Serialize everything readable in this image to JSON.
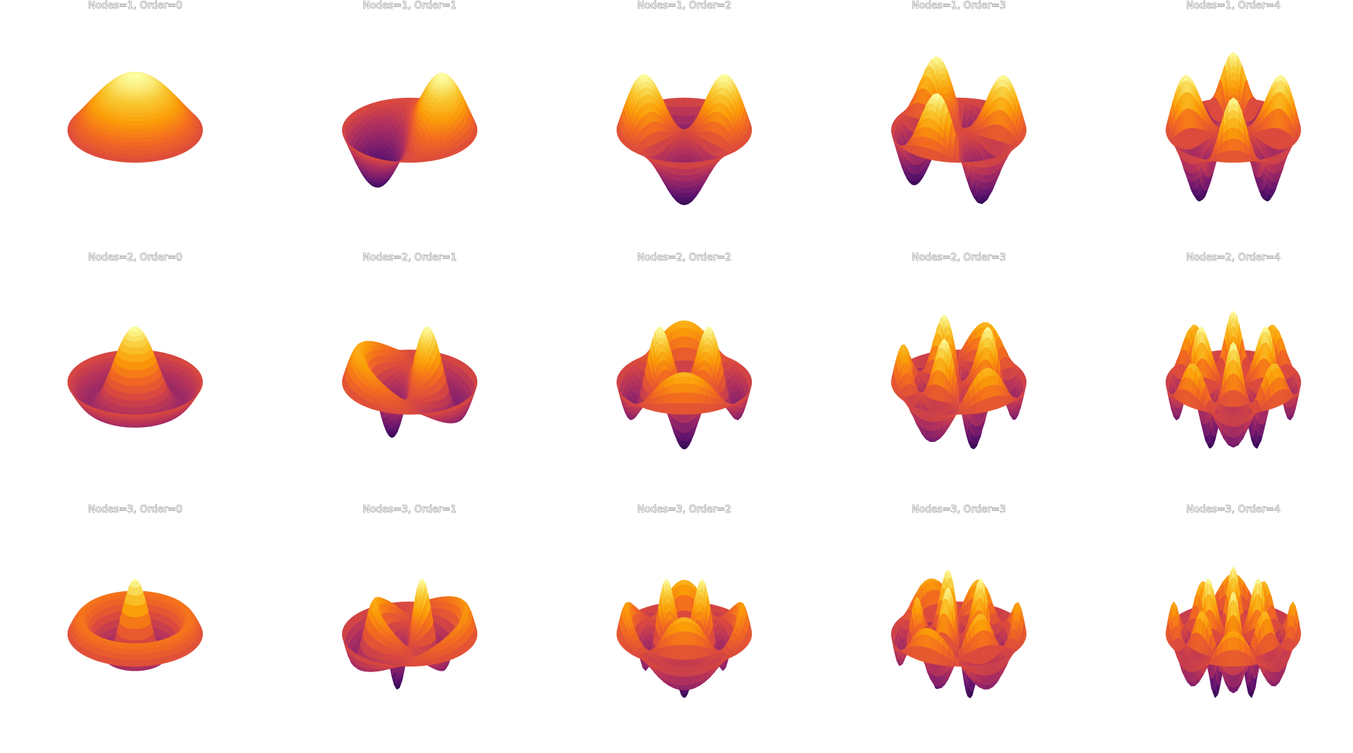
{
  "chart_data": {
    "type": "surface-grid",
    "description_title": "",
    "colormap": "inferno",
    "colors": [
      "#2a0a4c",
      "#5c126e",
      "#8a226a",
      "#b5325b",
      "#dc4a3c",
      "#f36b1f",
      "#fb9d07",
      "#f8c932",
      "#fcffa4"
    ],
    "layout": {
      "rows": 3,
      "cols": 5
    },
    "panels": [
      {
        "title": "Nodes=1, Order=0",
        "nodes": 1,
        "order": 0
      },
      {
        "title": "Nodes=1, Order=1",
        "nodes": 1,
        "order": 1
      },
      {
        "title": "Nodes=1, Order=2",
        "nodes": 1,
        "order": 2
      },
      {
        "title": "Nodes=1, Order=3",
        "nodes": 1,
        "order": 3
      },
      {
        "title": "Nodes=1, Order=4",
        "nodes": 1,
        "order": 4
      },
      {
        "title": "Nodes=2, Order=0",
        "nodes": 2,
        "order": 0
      },
      {
        "title": "Nodes=2, Order=1",
        "nodes": 2,
        "order": 1
      },
      {
        "title": "Nodes=2, Order=2",
        "nodes": 2,
        "order": 2
      },
      {
        "title": "Nodes=2, Order=3",
        "nodes": 2,
        "order": 3
      },
      {
        "title": "Nodes=2, Order=4",
        "nodes": 2,
        "order": 4
      },
      {
        "title": "Nodes=3, Order=0",
        "nodes": 3,
        "order": 0
      },
      {
        "title": "Nodes=3, Order=1",
        "nodes": 3,
        "order": 1
      },
      {
        "title": "Nodes=3, Order=2",
        "nodes": 3,
        "order": 2
      },
      {
        "title": "Nodes=3, Order=3",
        "nodes": 3,
        "order": 3
      },
      {
        "title": "Nodes=3, Order=4",
        "nodes": 3,
        "order": 4
      }
    ]
  }
}
